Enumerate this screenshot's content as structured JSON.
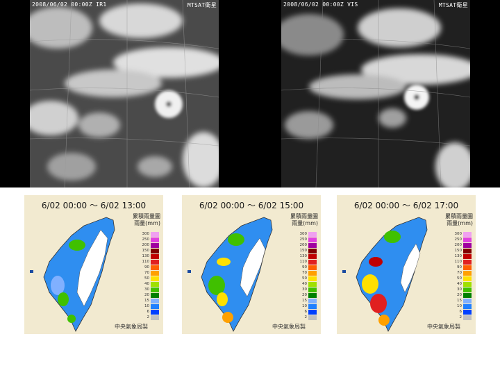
{
  "satellite": {
    "ir": {
      "label": "2008/06/02  00:00Z IR1",
      "sat_name": "MTSAT衛星"
    },
    "vis": {
      "label": "2008/06/02  00:00Z VIS",
      "sat_name": "MTSAT衛星"
    }
  },
  "rainfall_panels": [
    {
      "title": "6/02 00:00 ～ 6/02 13:00"
    },
    {
      "title": "6/02 00:00 ～ 6/02 15:00"
    },
    {
      "title": "6/02 00:00 ～ 6/02 17:00"
    }
  ],
  "legend": {
    "title": "累積雨量圖",
    "unit": "雨量(mm)",
    "levels": [
      "300",
      "250",
      "200",
      "150",
      "130",
      "110",
      "90",
      "70",
      "50",
      "40",
      "30",
      "20",
      "15",
      "10",
      "6",
      "2"
    ],
    "colors": [
      "#f0a0f0",
      "#e040e0",
      "#a000a0",
      "#800000",
      "#c00000",
      "#e02020",
      "#ff6000",
      "#ffa000",
      "#ffe000",
      "#a0e000",
      "#40c000",
      "#008000",
      "#80b0ff",
      "#2080ff",
      "#0040ff",
      "#c0c0c0"
    ]
  },
  "credit": "中央氣象局製"
}
